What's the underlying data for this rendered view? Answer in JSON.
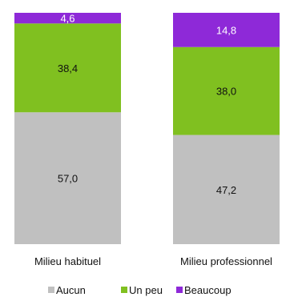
{
  "chart_data": {
    "type": "bar",
    "stacked": true,
    "normalized": true,
    "categories": [
      "Milieu habituel",
      "Milieu professionnel"
    ],
    "series": [
      {
        "name": "Aucun",
        "values": [
          57.0,
          47.2
        ],
        "labels": [
          "57,0",
          "47,2"
        ],
        "color": "#c0c0c0",
        "label_color": "#111111"
      },
      {
        "name": "Un peu",
        "values": [
          38.4,
          38.0
        ],
        "labels": [
          "38,4",
          "38,0"
        ],
        "color": "#80c020",
        "label_color": "#111111"
      },
      {
        "name": "Beaucoup",
        "values": [
          4.6,
          14.8
        ],
        "labels": [
          "4,6",
          "14,8"
        ],
        "color": "#8e29d8",
        "label_color": "#ffffff"
      }
    ],
    "ylim": [
      0,
      100
    ],
    "grid": false,
    "legend": "bottom"
  }
}
